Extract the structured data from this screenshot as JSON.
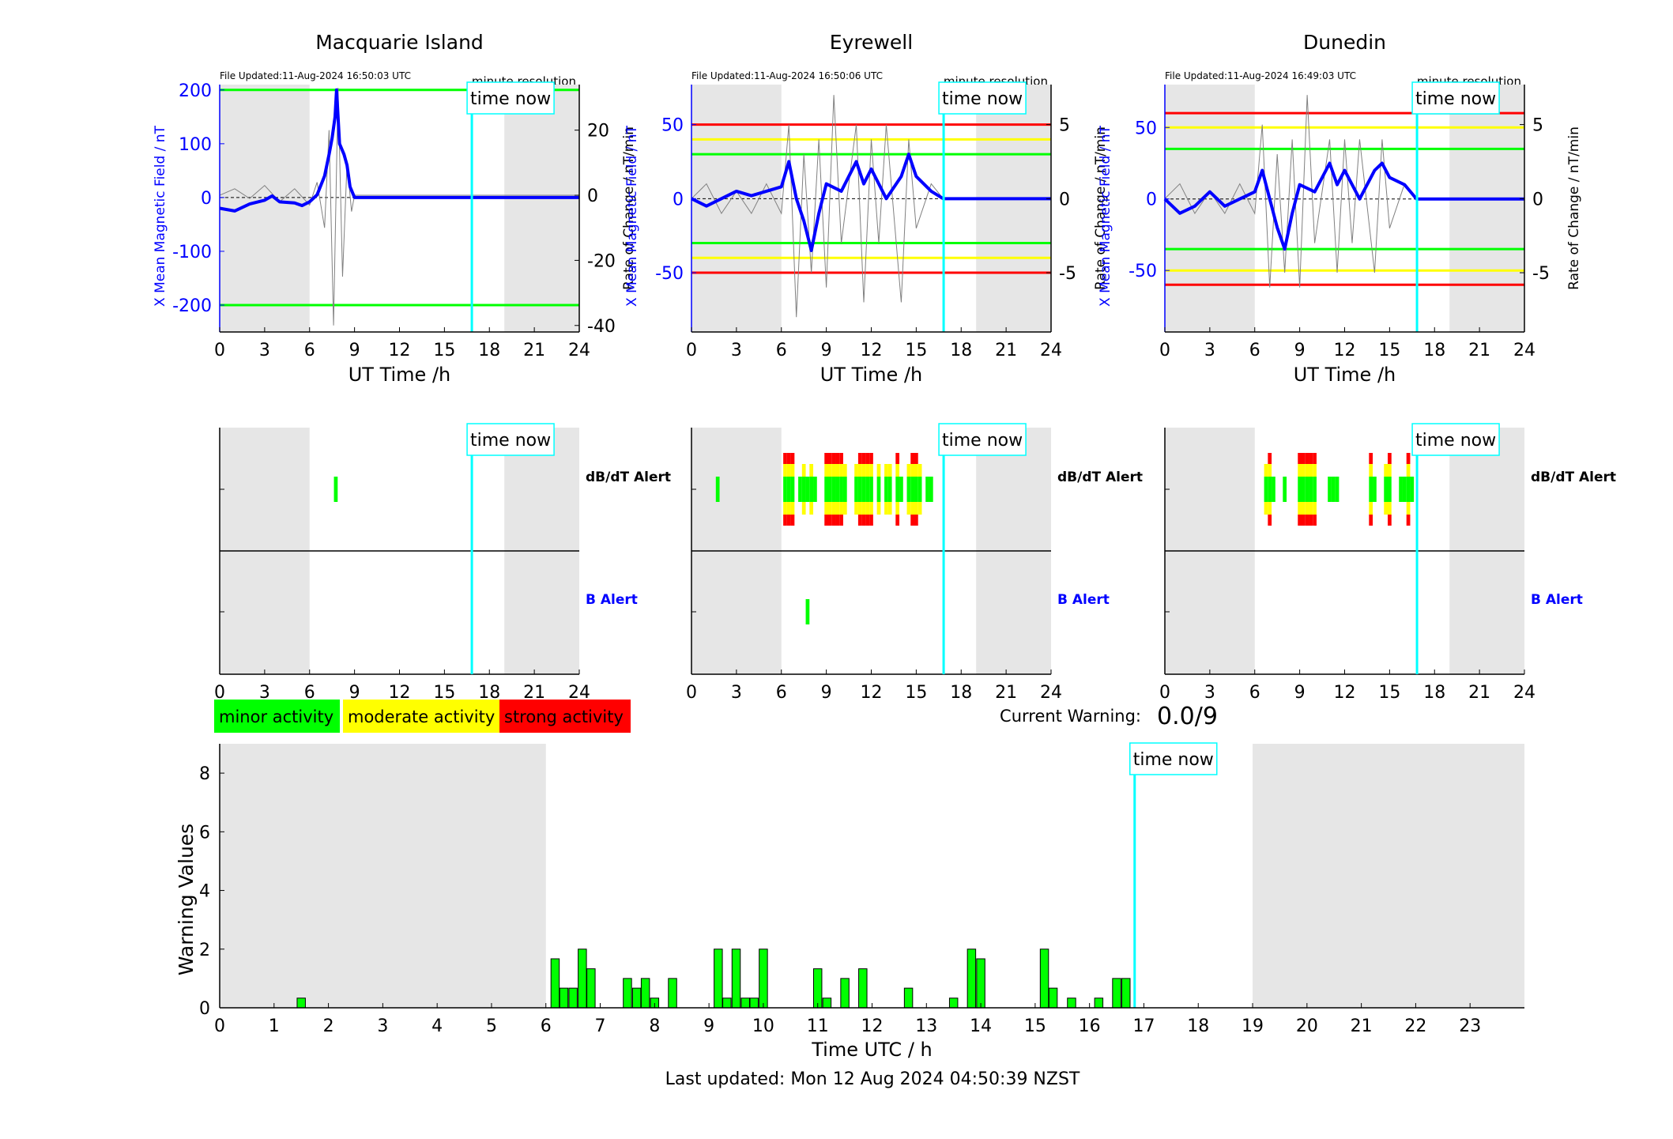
{
  "stations": [
    {
      "name": "Macquarie Island",
      "file_updated": "File Updated:11-Aug-2024 16:50:03 UTC"
    },
    {
      "name": "Eyrewell",
      "file_updated": "File Updated:11-Aug-2024 16:50:06 UTC"
    },
    {
      "name": "Dunedin",
      "file_updated": "File Updated:11-Aug-2024 16:49:03 UTC"
    }
  ],
  "labels": {
    "minute_resolution": "minute resolution",
    "time_now": "time now",
    "left_axis": "X Mean Magnetic Field / nT",
    "right_axis": "Rate of Change / nT/min",
    "ut_axis": "UT Time /h",
    "dbdt_alert": "dB/dT Alert",
    "b_alert": "B Alert",
    "current_warning_label": "Current Warning:",
    "current_warning_value": "0.0/9",
    "warning_ylabel": "Warning Values",
    "warning_xlabel": "Time UTC / h",
    "last_updated": "Last updated: Mon 12 Aug 2024 04:50:39 NZST"
  },
  "legend": [
    {
      "label": "minor activity",
      "color": "#00ff00"
    },
    {
      "label": "moderate activity",
      "color": "#ffff00"
    },
    {
      "label": "strong activity",
      "color": "#ff0000"
    }
  ],
  "colors": {
    "shade": "#e6e6e6",
    "field": "#0000ff",
    "rate": "#808080",
    "time_now": "#00ffff",
    "green": "#00ff00",
    "yellow": "#ffff00",
    "red": "#ff0000",
    "b_alert": "#0000ff"
  },
  "chart_data": [
    {
      "type": "line",
      "title": "Macquarie Island",
      "xlabel": "UT Time /h",
      "ylabel": "X Mean Magnetic Field / nT",
      "ylabel_right": "Rate of Change / nT/min",
      "xlim": [
        0,
        24
      ],
      "x_ticks": [
        0,
        3,
        6,
        9,
        12,
        15,
        18,
        21,
        24
      ],
      "ylim": [
        -250,
        210
      ],
      "y_ticks": [
        -200,
        -100,
        0,
        100,
        200
      ],
      "y2lim": [
        -42,
        34
      ],
      "y2_ticks": [
        -40,
        -20,
        0,
        20
      ],
      "time_now": 16.83,
      "shaded": [
        [
          0,
          6
        ],
        [
          19,
          24
        ]
      ],
      "thresholds": [
        {
          "value": 200,
          "color": "green"
        },
        {
          "value": -200,
          "color": "green"
        }
      ],
      "field_series": [
        [
          0,
          -20
        ],
        [
          1,
          -25
        ],
        [
          2,
          -12
        ],
        [
          3,
          -5
        ],
        [
          3.5,
          3
        ],
        [
          4,
          -8
        ],
        [
          5,
          -10
        ],
        [
          5.5,
          -15
        ],
        [
          6,
          -8
        ],
        [
          6.5,
          5
        ],
        [
          7,
          40
        ],
        [
          7.3,
          80
        ],
        [
          7.5,
          110
        ],
        [
          7.7,
          150
        ],
        [
          7.8,
          200
        ],
        [
          8,
          100
        ],
        [
          8.3,
          80
        ],
        [
          8.5,
          60
        ],
        [
          8.7,
          20
        ],
        [
          9,
          0
        ],
        [
          24,
          0
        ]
      ],
      "rate_series": [
        [
          0,
          0
        ],
        [
          1,
          2
        ],
        [
          2,
          -1
        ],
        [
          3,
          3
        ],
        [
          4,
          -2
        ],
        [
          5,
          2
        ],
        [
          6,
          -3
        ],
        [
          6.5,
          4
        ],
        [
          7,
          -10
        ],
        [
          7.3,
          20
        ],
        [
          7.6,
          -40
        ],
        [
          7.9,
          33
        ],
        [
          8.2,
          -25
        ],
        [
          8.5,
          10
        ],
        [
          8.8,
          -5
        ],
        [
          9,
          0
        ],
        [
          24,
          0
        ]
      ]
    },
    {
      "type": "line",
      "title": "Eyrewell",
      "xlabel": "UT Time /h",
      "ylabel": "X Mean Magnetic Field / nT",
      "ylabel_right": "Rate of Change / nT/min",
      "xlim": [
        0,
        24
      ],
      "x_ticks": [
        0,
        3,
        6,
        9,
        12,
        15,
        18,
        21,
        24
      ],
      "ylim": [
        -90,
        77
      ],
      "y_ticks": [
        -50,
        0,
        50
      ],
      "y2lim": [
        -9,
        7.7
      ],
      "y2_ticks": [
        -5,
        0,
        5
      ],
      "time_now": 16.83,
      "shaded": [
        [
          0,
          6
        ],
        [
          19,
          24
        ]
      ],
      "thresholds": [
        {
          "value": 50,
          "color": "red"
        },
        {
          "value": -50,
          "color": "red"
        },
        {
          "value": 40,
          "color": "yellow"
        },
        {
          "value": -40,
          "color": "yellow"
        },
        {
          "value": 30,
          "color": "green"
        },
        {
          "value": -30,
          "color": "green"
        }
      ],
      "field_series": [
        [
          0,
          0
        ],
        [
          1,
          -5
        ],
        [
          2,
          0
        ],
        [
          3,
          5
        ],
        [
          4,
          2
        ],
        [
          5,
          5
        ],
        [
          6,
          8
        ],
        [
          6.5,
          25
        ],
        [
          7,
          0
        ],
        [
          7.5,
          -15
        ],
        [
          8,
          -35
        ],
        [
          8.5,
          -10
        ],
        [
          9,
          10
        ],
        [
          10,
          5
        ],
        [
          11,
          25
        ],
        [
          11.5,
          10
        ],
        [
          12,
          20
        ],
        [
          13,
          0
        ],
        [
          14,
          15
        ],
        [
          14.5,
          30
        ],
        [
          15,
          15
        ],
        [
          16,
          5
        ],
        [
          16.8,
          0
        ],
        [
          24,
          0
        ]
      ],
      "rate_series": [
        [
          0,
          0
        ],
        [
          1,
          1
        ],
        [
          2,
          -1
        ],
        [
          3,
          0.5
        ],
        [
          4,
          -1
        ],
        [
          5,
          1
        ],
        [
          6,
          -1
        ],
        [
          6.5,
          5
        ],
        [
          7,
          -8
        ],
        [
          7.5,
          3
        ],
        [
          8,
          -5
        ],
        [
          8.5,
          4
        ],
        [
          9,
          -6
        ],
        [
          9.5,
          7
        ],
        [
          10,
          -3
        ],
        [
          11,
          5
        ],
        [
          11.5,
          -7
        ],
        [
          12,
          4
        ],
        [
          12.5,
          -3
        ],
        [
          13,
          5
        ],
        [
          14,
          -7
        ],
        [
          14.5,
          4
        ],
        [
          15,
          -2
        ],
        [
          16,
          1
        ],
        [
          16.8,
          0
        ],
        [
          24,
          0
        ]
      ]
    },
    {
      "type": "line",
      "title": "Dunedin",
      "xlabel": "UT Time /h",
      "ylabel": "X Mean Magnetic Field / nT",
      "ylabel_right": "Rate of Change / nT/min",
      "xlim": [
        0,
        24
      ],
      "x_ticks": [
        0,
        3,
        6,
        9,
        12,
        15,
        18,
        21,
        24
      ],
      "ylim": [
        -93,
        80
      ],
      "y_ticks": [
        -50,
        0,
        50
      ],
      "y2lim": [
        -9,
        7.7
      ],
      "y2_ticks": [
        -5,
        0,
        5
      ],
      "time_now": 16.83,
      "shaded": [
        [
          0,
          6
        ],
        [
          19,
          24
        ]
      ],
      "thresholds": [
        {
          "value": 60,
          "color": "red"
        },
        {
          "value": -60,
          "color": "red"
        },
        {
          "value": 50,
          "color": "yellow"
        },
        {
          "value": -50,
          "color": "yellow"
        },
        {
          "value": 35,
          "color": "green"
        },
        {
          "value": -35,
          "color": "green"
        }
      ],
      "field_series": [
        [
          0,
          0
        ],
        [
          1,
          -10
        ],
        [
          2,
          -5
        ],
        [
          3,
          5
        ],
        [
          4,
          -5
        ],
        [
          5,
          0
        ],
        [
          6,
          5
        ],
        [
          6.5,
          20
        ],
        [
          7,
          0
        ],
        [
          7.5,
          -20
        ],
        [
          8,
          -35
        ],
        [
          8.5,
          -10
        ],
        [
          9,
          10
        ],
        [
          10,
          5
        ],
        [
          11,
          25
        ],
        [
          11.5,
          10
        ],
        [
          12,
          20
        ],
        [
          13,
          0
        ],
        [
          14,
          20
        ],
        [
          14.5,
          25
        ],
        [
          15,
          15
        ],
        [
          16,
          10
        ],
        [
          16.8,
          0
        ],
        [
          24,
          0
        ]
      ],
      "rate_series": [
        [
          0,
          0
        ],
        [
          1,
          1
        ],
        [
          2,
          -1
        ],
        [
          3,
          0.5
        ],
        [
          4,
          -1
        ],
        [
          5,
          1
        ],
        [
          6,
          -1
        ],
        [
          6.5,
          5
        ],
        [
          7,
          -6
        ],
        [
          7.5,
          3
        ],
        [
          8,
          -5
        ],
        [
          8.5,
          4
        ],
        [
          9,
          -6
        ],
        [
          9.5,
          7
        ],
        [
          10,
          -3
        ],
        [
          11,
          4
        ],
        [
          11.5,
          -5
        ],
        [
          12,
          4
        ],
        [
          12.5,
          -3
        ],
        [
          13,
          4
        ],
        [
          14,
          -5
        ],
        [
          14.5,
          4
        ],
        [
          15,
          -2
        ],
        [
          16,
          1
        ],
        [
          16.8,
          0
        ],
        [
          24,
          0
        ]
      ]
    },
    {
      "type": "heatmap",
      "title": "Macquarie Island",
      "xlim": [
        0,
        24
      ],
      "x_ticks": [
        0,
        3,
        6,
        9,
        12,
        15,
        18,
        21,
        24
      ],
      "time_now": 16.83,
      "shaded": [
        [
          0,
          6
        ],
        [
          19,
          24
        ]
      ],
      "dbdt_alerts": [
        {
          "t": 7.75,
          "level": 1
        }
      ],
      "b_alerts": []
    },
    {
      "type": "heatmap",
      "title": "Eyrewell",
      "xlim": [
        0,
        24
      ],
      "x_ticks": [
        0,
        3,
        6,
        9,
        12,
        15,
        18,
        21,
        24
      ],
      "time_now": 16.83,
      "shaded": [
        [
          0,
          6
        ],
        [
          19,
          24
        ]
      ],
      "dbdt_alerts": [
        {
          "t": 1.75,
          "level": 1
        },
        {
          "t": 6.25,
          "level": 3
        },
        {
          "t": 6.5,
          "level": 3
        },
        {
          "t": 6.75,
          "level": 3
        },
        {
          "t": 7.25,
          "level": 1
        },
        {
          "t": 7.5,
          "level": 2
        },
        {
          "t": 7.75,
          "level": 1
        },
        {
          "t": 8.0,
          "level": 2
        },
        {
          "t": 8.25,
          "level": 1
        },
        {
          "t": 9.0,
          "level": 3
        },
        {
          "t": 9.25,
          "level": 3
        },
        {
          "t": 9.5,
          "level": 3
        },
        {
          "t": 9.75,
          "level": 3
        },
        {
          "t": 10.0,
          "level": 3
        },
        {
          "t": 10.25,
          "level": 2
        },
        {
          "t": 11.0,
          "level": 2
        },
        {
          "t": 11.25,
          "level": 3
        },
        {
          "t": 11.5,
          "level": 3
        },
        {
          "t": 11.75,
          "level": 3
        },
        {
          "t": 12.0,
          "level": 3
        },
        {
          "t": 12.5,
          "level": 2
        },
        {
          "t": 13.0,
          "level": 2
        },
        {
          "t": 13.25,
          "level": 2
        },
        {
          "t": 13.75,
          "level": 3
        },
        {
          "t": 14.0,
          "level": 1
        },
        {
          "t": 14.5,
          "level": 2
        },
        {
          "t": 14.75,
          "level": 3
        },
        {
          "t": 15.0,
          "level": 3
        },
        {
          "t": 15.25,
          "level": 2
        },
        {
          "t": 15.75,
          "level": 1
        },
        {
          "t": 16.0,
          "level": 1
        }
      ],
      "b_alerts": [
        {
          "t": 7.75,
          "level": 1
        }
      ]
    },
    {
      "type": "heatmap",
      "title": "Dunedin",
      "xlim": [
        0,
        24
      ],
      "x_ticks": [
        0,
        3,
        6,
        9,
        12,
        15,
        18,
        21,
        24
      ],
      "time_now": 16.83,
      "shaded": [
        [
          0,
          6
        ],
        [
          19,
          24
        ]
      ],
      "dbdt_alerts": [
        {
          "t": 6.75,
          "level": 2
        },
        {
          "t": 7.0,
          "level": 3
        },
        {
          "t": 7.25,
          "level": 1
        },
        {
          "t": 8.0,
          "level": 1
        },
        {
          "t": 9.0,
          "level": 3
        },
        {
          "t": 9.25,
          "level": 3
        },
        {
          "t": 9.5,
          "level": 3
        },
        {
          "t": 9.75,
          "level": 3
        },
        {
          "t": 10.0,
          "level": 3
        },
        {
          "t": 11.0,
          "level": 1
        },
        {
          "t": 11.25,
          "level": 1
        },
        {
          "t": 11.5,
          "level": 1
        },
        {
          "t": 13.75,
          "level": 3
        },
        {
          "t": 14.0,
          "level": 1
        },
        {
          "t": 14.75,
          "level": 2
        },
        {
          "t": 15.0,
          "level": 3
        },
        {
          "t": 15.75,
          "level": 1
        },
        {
          "t": 16.0,
          "level": 1
        },
        {
          "t": 16.25,
          "level": 3
        },
        {
          "t": 16.5,
          "level": 1
        }
      ],
      "b_alerts": []
    },
    {
      "type": "bar",
      "title": "",
      "xlabel": "Time UTC / h",
      "ylabel": "Warning Values",
      "xlim": [
        0,
        24
      ],
      "x_ticks": [
        0,
        1,
        2,
        3,
        4,
        5,
        6,
        7,
        8,
        9,
        10,
        11,
        12,
        13,
        14,
        15,
        16,
        17,
        18,
        19,
        20,
        21,
        22,
        23
      ],
      "ylim": [
        0,
        9
      ],
      "y_ticks": [
        0,
        2,
        4,
        6,
        8
      ],
      "time_now": 16.83,
      "shaded": [
        [
          0,
          6
        ],
        [
          19,
          24
        ]
      ],
      "bars": [
        {
          "t": 1.5,
          "value": 0.33
        },
        {
          "t": 6.17,
          "value": 1.67
        },
        {
          "t": 6.33,
          "value": 0.67
        },
        {
          "t": 6.5,
          "value": 0.67
        },
        {
          "t": 6.67,
          "value": 2
        },
        {
          "t": 6.83,
          "value": 1.33
        },
        {
          "t": 7.5,
          "value": 1
        },
        {
          "t": 7.67,
          "value": 0.67
        },
        {
          "t": 7.83,
          "value": 1
        },
        {
          "t": 8.0,
          "value": 0.33
        },
        {
          "t": 8.33,
          "value": 1
        },
        {
          "t": 9.17,
          "value": 2
        },
        {
          "t": 9.33,
          "value": 0.33
        },
        {
          "t": 9.5,
          "value": 2
        },
        {
          "t": 9.67,
          "value": 0.33
        },
        {
          "t": 9.83,
          "value": 0.33
        },
        {
          "t": 10.0,
          "value": 2
        },
        {
          "t": 11.0,
          "value": 1.33
        },
        {
          "t": 11.17,
          "value": 0.33
        },
        {
          "t": 11.5,
          "value": 1
        },
        {
          "t": 11.83,
          "value": 1.33
        },
        {
          "t": 12.67,
          "value": 0.67
        },
        {
          "t": 13.5,
          "value": 0.33
        },
        {
          "t": 13.83,
          "value": 2
        },
        {
          "t": 14.0,
          "value": 1.67
        },
        {
          "t": 15.17,
          "value": 2
        },
        {
          "t": 15.33,
          "value": 0.67
        },
        {
          "t": 15.67,
          "value": 0.33
        },
        {
          "t": 16.17,
          "value": 0.33
        },
        {
          "t": 16.5,
          "value": 1
        },
        {
          "t": 16.67,
          "value": 1
        }
      ]
    }
  ]
}
